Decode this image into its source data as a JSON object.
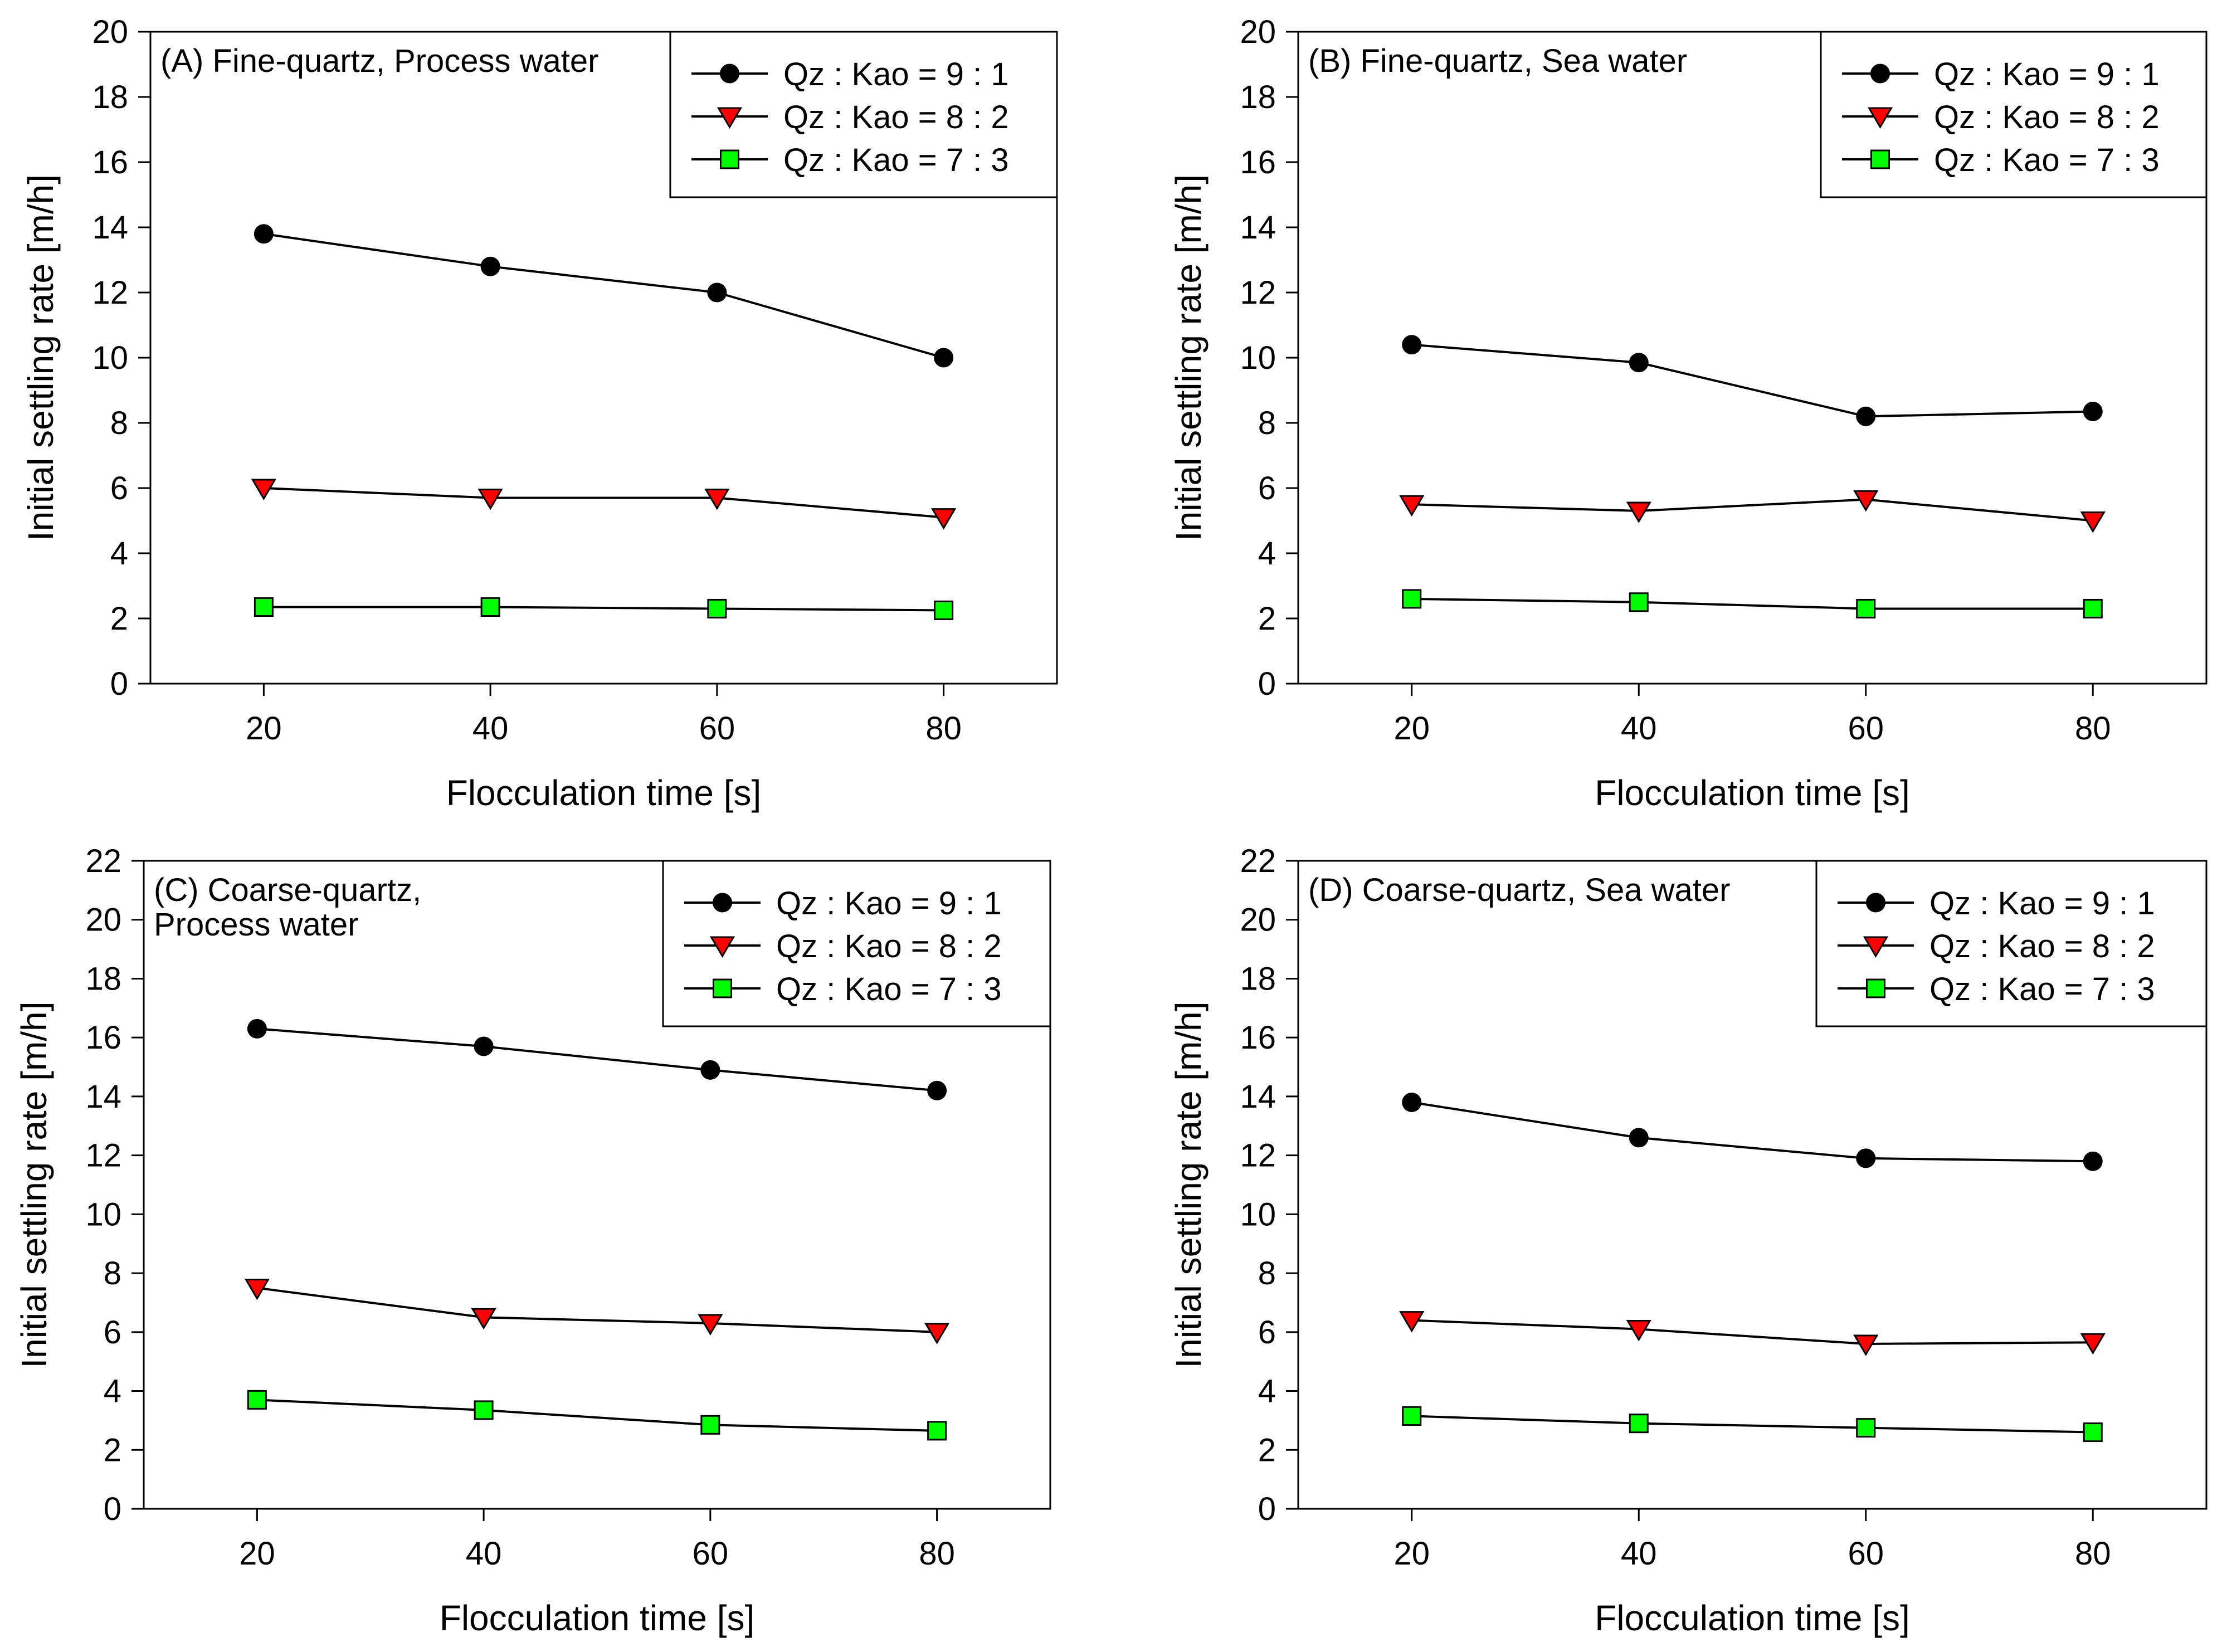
{
  "chart_data": [
    {
      "id": "A",
      "type": "line",
      "title_lines": [
        "(A) Fine-quartz, Process water"
      ],
      "xlabel": "Flocculation time [s]",
      "ylabel": "Initial settling rate [m/h]",
      "x": [
        20,
        40,
        60,
        80
      ],
      "xlim": [
        10,
        90
      ],
      "xticks": [
        20,
        40,
        60,
        80
      ],
      "ylim": [
        0,
        20
      ],
      "yticks": [
        0,
        2,
        4,
        6,
        8,
        10,
        12,
        14,
        16,
        18,
        20
      ],
      "grid": false,
      "legend_position": "top-right",
      "series": [
        {
          "name": "Qz : Kao = 9 : 1",
          "marker": "circle",
          "color": "#000000",
          "values": [
            13.8,
            12.8,
            12.0,
            10.0
          ]
        },
        {
          "name": "Qz : Kao = 8 : 2",
          "marker": "triangle-down",
          "color": "#ff0000",
          "values": [
            6.0,
            5.7,
            5.7,
            5.1
          ]
        },
        {
          "name": "Qz : Kao = 7 : 3",
          "marker": "square",
          "color": "#00ff00",
          "values": [
            2.35,
            2.35,
            2.3,
            2.25
          ]
        }
      ]
    },
    {
      "id": "B",
      "type": "line",
      "title_lines": [
        "(B) Fine-quartz, Sea water"
      ],
      "xlabel": "Flocculation time [s]",
      "ylabel": "Initial settling rate [m/h]",
      "x": [
        20,
        40,
        60,
        80
      ],
      "xlim": [
        10,
        90
      ],
      "xticks": [
        20,
        40,
        60,
        80
      ],
      "ylim": [
        0,
        20
      ],
      "yticks": [
        0,
        2,
        4,
        6,
        8,
        10,
        12,
        14,
        16,
        18,
        20
      ],
      "grid": false,
      "legend_position": "top-right",
      "series": [
        {
          "name": "Qz : Kao = 9 : 1",
          "marker": "circle",
          "color": "#000000",
          "values": [
            10.4,
            9.85,
            8.2,
            8.35
          ]
        },
        {
          "name": "Qz : Kao = 8 : 2",
          "marker": "triangle-down",
          "color": "#ff0000",
          "values": [
            5.5,
            5.3,
            5.65,
            5.0
          ]
        },
        {
          "name": "Qz : Kao = 7 : 3",
          "marker": "square",
          "color": "#00ff00",
          "values": [
            2.6,
            2.5,
            2.3,
            2.3
          ]
        }
      ]
    },
    {
      "id": "C",
      "type": "line",
      "title_lines": [
        "(C) Coarse-quartz,",
        "Process water"
      ],
      "xlabel": "Flocculation time [s]",
      "ylabel": "Initial settling rate [m/h]",
      "x": [
        20,
        40,
        60,
        80
      ],
      "xlim": [
        10,
        90
      ],
      "xticks": [
        20,
        40,
        60,
        80
      ],
      "ylim": [
        0,
        22
      ],
      "yticks": [
        0,
        2,
        4,
        6,
        8,
        10,
        12,
        14,
        16,
        18,
        20,
        22
      ],
      "grid": false,
      "legend_position": "top-right",
      "series": [
        {
          "name": "Qz : Kao = 9 : 1",
          "marker": "circle",
          "color": "#000000",
          "values": [
            16.3,
            15.7,
            14.9,
            14.2
          ]
        },
        {
          "name": "Qz : Kao = 8 : 2",
          "marker": "triangle-down",
          "color": "#ff0000",
          "values": [
            7.5,
            6.5,
            6.3,
            6.0
          ]
        },
        {
          "name": "Qz : Kao = 7 : 3",
          "marker": "square",
          "color": "#00ff00",
          "values": [
            3.7,
            3.35,
            2.85,
            2.65
          ]
        }
      ]
    },
    {
      "id": "D",
      "type": "line",
      "title_lines": [
        "(D) Coarse-quartz, Sea water"
      ],
      "xlabel": "Flocculation time [s]",
      "ylabel": "Initial settling rate [m/h]",
      "x": [
        20,
        40,
        60,
        80
      ],
      "xlim": [
        10,
        90
      ],
      "xticks": [
        20,
        40,
        60,
        80
      ],
      "ylim": [
        0,
        22
      ],
      "yticks": [
        0,
        2,
        4,
        6,
        8,
        10,
        12,
        14,
        16,
        18,
        20,
        22
      ],
      "grid": false,
      "legend_position": "top-right",
      "series": [
        {
          "name": "Qz : Kao = 9 : 1",
          "marker": "circle",
          "color": "#000000",
          "values": [
            13.8,
            12.6,
            11.9,
            11.8
          ]
        },
        {
          "name": "Qz : Kao = 8 : 2",
          "marker": "triangle-down",
          "color": "#ff0000",
          "values": [
            6.4,
            6.1,
            5.6,
            5.65
          ]
        },
        {
          "name": "Qz : Kao = 7 : 3",
          "marker": "square",
          "color": "#00ff00",
          "values": [
            3.15,
            2.9,
            2.75,
            2.6
          ]
        }
      ]
    }
  ]
}
